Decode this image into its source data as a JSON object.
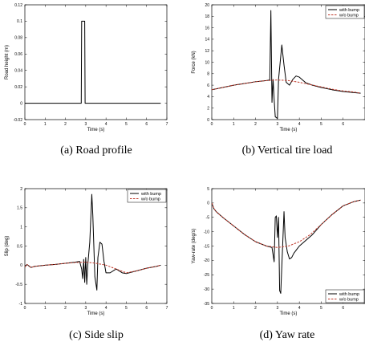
{
  "chart_data": [
    {
      "type": "line",
      "caption": "(a) Road profile",
      "xlabel": "Time (s)",
      "ylabel": "Road height (m)",
      "xlim": [
        0,
        7
      ],
      "ylim": [
        -0.02,
        0.12
      ],
      "xticks": [
        "0",
        "1",
        "2",
        "3",
        "4",
        "5",
        "6",
        "7"
      ],
      "yticks": [
        "-0.02",
        "0",
        "0.02",
        "0.04",
        "0.06",
        "0.08",
        "0.1",
        "0.12"
      ],
      "legend": null,
      "series": [
        {
          "color": "#000000",
          "dashed": false,
          "x": [
            0,
            2.78,
            2.8,
            2.95,
            2.97,
            6.7
          ],
          "y": [
            0,
            0,
            0.1,
            0.1,
            0,
            0
          ]
        }
      ]
    },
    {
      "type": "line",
      "caption": "(b) Vertical tire load",
      "xlabel": "Time (s)",
      "ylabel": "Force (kN)",
      "xlim": [
        0,
        7
      ],
      "ylim": [
        0,
        20
      ],
      "xticks": [
        "0",
        "1",
        "2",
        "3",
        "4",
        "5",
        "6"
      ],
      "yticks": [
        "0",
        "2",
        "4",
        "6",
        "8",
        "10",
        "12",
        "14",
        "16",
        "18",
        "20"
      ],
      "legend": "top-right",
      "series": [
        {
          "name": "with bump",
          "color": "#000000",
          "dashed": false,
          "x": [
            0,
            0.5,
            1,
            1.5,
            2,
            2.5,
            2.65,
            2.7,
            2.75,
            2.8,
            2.85,
            2.9,
            3.0,
            3.05,
            3.1,
            3.15,
            3.2,
            3.3,
            3.4,
            3.55,
            3.7,
            3.85,
            4.0,
            4.3,
            4.6,
            5,
            5.5,
            6,
            6.5,
            6.8
          ],
          "y": [
            5.2,
            5.6,
            6.0,
            6.3,
            6.6,
            6.8,
            6.9,
            19.0,
            3.0,
            7.0,
            3.5,
            0.5,
            0.2,
            7.0,
            9.0,
            11.0,
            13.0,
            9.5,
            6.5,
            6.0,
            7.0,
            7.6,
            7.4,
            6.4,
            6.0,
            5.6,
            5.2,
            4.9,
            4.7,
            4.6
          ]
        },
        {
          "name": "w/o bump",
          "color": "#c0392b",
          "dashed": true,
          "x": [
            0,
            0.5,
            1,
            1.5,
            2,
            2.5,
            3,
            3.5,
            4,
            4.5,
            5,
            5.5,
            6,
            6.5,
            6.8
          ],
          "y": [
            5.2,
            5.6,
            6.0,
            6.3,
            6.6,
            6.8,
            6.9,
            6.8,
            6.5,
            6.1,
            5.7,
            5.3,
            5.0,
            4.8,
            4.6
          ]
        }
      ]
    },
    {
      "type": "line",
      "caption": "(c) Side slip",
      "xlabel": "Time (s)",
      "ylabel": "Slip (deg)",
      "xlim": [
        0,
        7
      ],
      "ylim": [
        -1,
        2
      ],
      "xticks": [
        "0",
        "1",
        "2",
        "3",
        "4",
        "5",
        "6",
        "7"
      ],
      "yticks": [
        "-1",
        "-0.5",
        "0",
        "0.5",
        "1",
        "1.5",
        "2"
      ],
      "legend": "top-right",
      "series": [
        {
          "name": "with bump",
          "color": "#000000",
          "dashed": false,
          "x": [
            0,
            0.1,
            0.2,
            0.3,
            0.5,
            1,
            1.5,
            2,
            2.5,
            2.7,
            2.8,
            2.85,
            2.9,
            2.95,
            3.0,
            3.05,
            3.1,
            3.2,
            3.3,
            3.35,
            3.45,
            3.55,
            3.6,
            3.7,
            3.8,
            3.9,
            4.0,
            4.2,
            4.5,
            4.8,
            5,
            5.5,
            6,
            6.5,
            6.7
          ],
          "y": [
            -0.05,
            0.02,
            -0.02,
            -0.06,
            -0.03,
            0.0,
            0.02,
            0.05,
            0.08,
            0.1,
            -0.1,
            -0.35,
            0.15,
            -0.45,
            0.2,
            -0.5,
            0.0,
            0.6,
            1.85,
            1.3,
            -0.3,
            -0.65,
            0.2,
            0.6,
            0.55,
            0.1,
            -0.2,
            -0.2,
            -0.1,
            -0.2,
            -0.22,
            -0.15,
            -0.08,
            -0.03,
            0.0
          ]
        },
        {
          "name": "w/o bump",
          "color": "#c0392b",
          "dashed": true,
          "x": [
            0,
            0.1,
            0.2,
            0.3,
            0.5,
            1,
            1.5,
            2,
            2.5,
            3,
            3.5,
            4,
            4.5,
            5,
            5.5,
            6,
            6.5,
            6.7
          ],
          "y": [
            -0.05,
            0.02,
            -0.02,
            -0.06,
            -0.03,
            0.0,
            0.02,
            0.05,
            0.07,
            0.08,
            0.05,
            0.0,
            -0.1,
            -0.2,
            -0.15,
            -0.08,
            -0.03,
            0.0
          ]
        }
      ]
    },
    {
      "type": "line",
      "caption": "(d) Yaw rate",
      "xlabel": "Time (s)",
      "ylabel": "Yaw-rate (deg/s)",
      "xlim": [
        0,
        7
      ],
      "ylim": [
        -35,
        5
      ],
      "xticks": [
        "0",
        "1",
        "2",
        "3",
        "4",
        "5",
        "6"
      ],
      "yticks": [
        "-35",
        "-30",
        "-25",
        "-20",
        "-15",
        "-10",
        "-5",
        "0",
        "5"
      ],
      "legend": "bottom-right",
      "series": [
        {
          "name": "with bump",
          "color": "#000000",
          "dashed": false,
          "x": [
            0,
            0.1,
            0.2,
            0.5,
            1,
            1.5,
            2,
            2.5,
            2.75,
            2.85,
            2.9,
            2.95,
            3.0,
            3.05,
            3.1,
            3.15,
            3.2,
            3.3,
            3.35,
            3.45,
            3.55,
            3.65,
            3.75,
            3.9,
            4.0,
            4.3,
            4.6,
            5,
            5.5,
            6,
            6.5,
            6.8
          ],
          "y": [
            0,
            -2,
            -3,
            -5,
            -8,
            -11,
            -13.5,
            -15,
            -15.5,
            -20.5,
            -5,
            -4.5,
            -12,
            -5,
            -30.5,
            -31.5,
            -22,
            -3,
            -12,
            -17,
            -19.5,
            -19,
            -17.5,
            -16,
            -15,
            -13,
            -11,
            -7.5,
            -4,
            -1,
            0.5,
            1
          ]
        },
        {
          "name": "w/o bump",
          "color": "#c0392b",
          "dashed": true,
          "x": [
            0,
            0.1,
            0.2,
            0.5,
            1,
            1.5,
            2,
            2.5,
            3,
            3.5,
            4,
            4.5,
            5,
            5.5,
            6,
            6.5,
            6.8
          ],
          "y": [
            0,
            -2,
            -3,
            -5,
            -8,
            -11,
            -13.5,
            -15,
            -15.5,
            -15,
            -13.5,
            -11,
            -7.5,
            -4,
            -1,
            0.5,
            1
          ]
        }
      ]
    }
  ]
}
